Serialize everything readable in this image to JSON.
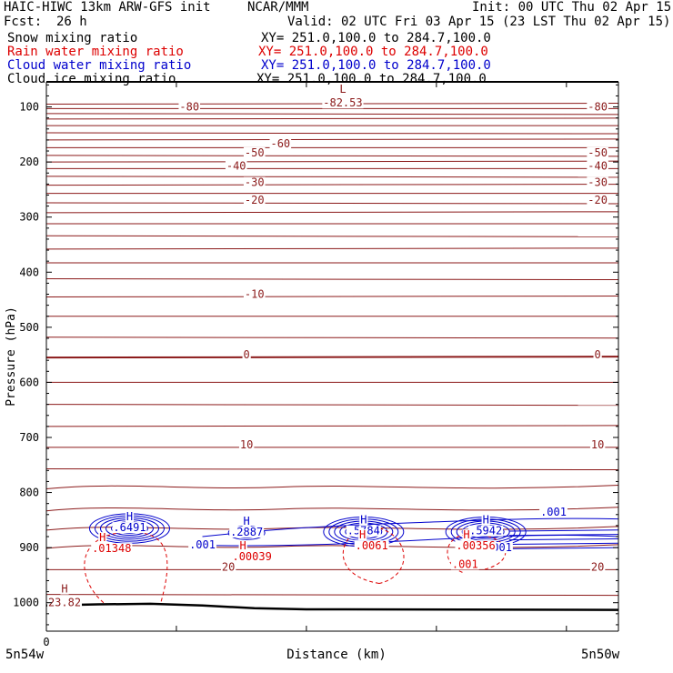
{
  "header": {
    "model": "HAIC-HIWC 13km ARW-GFS init",
    "org": "NCAR/MMM",
    "init": "Init: 00 UTC Thu 02 Apr 15",
    "fcst_label": "Fcst:",
    "fcst_value": "26 h",
    "valid": "Valid: 02 UTC Fri 03 Apr 15 (23 LST Thu 02 Apr 15)",
    "fields": [
      {
        "name": "Snow mixing ratio",
        "xy": "XY= 251.0,100.0 to 284.7,100.0",
        "color": "#000000"
      },
      {
        "name": "Rain water mixing ratio",
        "xy": "XY= 251.0,100.0 to 284.7,100.0",
        "color": "#dd0000"
      },
      {
        "name": "Cloud water mixing ratio",
        "xy": "XY= 251.0,100.0 to 284.7,100.0",
        "color": "#0000cc"
      },
      {
        "name": "Cloud ice mixing ratio",
        "xy": "XY= 251.0,100.0 to 284.7,100.0",
        "color": "#000000"
      }
    ]
  },
  "chart_data": {
    "type": "cross-section contour",
    "xlabel": "Distance (km)",
    "ylabel": "Pressure (hPa)",
    "x_ticks": [
      "0"
    ],
    "x_endpoints": [
      "5n54w",
      "5n50w"
    ],
    "yticks": [
      100,
      200,
      300,
      400,
      500,
      600,
      700,
      800,
      900,
      1000
    ],
    "ylim": [
      50,
      1050
    ],
    "grid": false,
    "colors": {
      "temperature": "#8b1a1a",
      "rain": "#dd0000",
      "cloud_water": "#0000cc",
      "terrain": "#000000"
    },
    "temperature_contours": {
      "units": "deg C",
      "interval": 10,
      "labels": [
        {
          "value": "-80",
          "x_km": 55,
          "p": 105
        },
        {
          "value": "-80",
          "x_km": 212,
          "p": 105
        },
        {
          "value": "-60",
          "x_km": 90,
          "p": 172
        },
        {
          "value": "-50",
          "x_km": 80,
          "p": 188
        },
        {
          "value": "-50",
          "x_km": 212,
          "p": 188
        },
        {
          "value": "-40",
          "x_km": 73,
          "p": 212
        },
        {
          "value": "-40",
          "x_km": 212,
          "p": 212
        },
        {
          "value": "-30",
          "x_km": 80,
          "p": 242
        },
        {
          "value": "-30",
          "x_km": 212,
          "p": 242
        },
        {
          "value": "-20",
          "x_km": 80,
          "p": 274
        },
        {
          "value": "-20",
          "x_km": 212,
          "p": 274
        },
        {
          "value": "-10",
          "x_km": 80,
          "p": 445
        },
        {
          "value": "0",
          "x_km": 77,
          "p": 555
        },
        {
          "value": "0",
          "x_km": 212,
          "p": 555
        },
        {
          "value": "10",
          "x_km": 77,
          "p": 718
        },
        {
          "value": "10",
          "x_km": 212,
          "p": 718
        },
        {
          "value": "20",
          "x_km": 70,
          "p": 940
        },
        {
          "value": "20",
          "x_km": 212,
          "p": 940
        }
      ],
      "extrema": [
        {
          "type": "L",
          "label": "-82.53",
          "x_km": 114,
          "p": 78
        },
        {
          "type": "H",
          "label": "23.82",
          "x_km": 7,
          "p": 985
        }
      ]
    },
    "cloud_water_extrema": [
      {
        "type": "H",
        "label": ".6491",
        "x_km": 32,
        "p": 862
      },
      {
        "type": "H",
        "label": ".2887",
        "x_km": 77,
        "p": 870
      },
      {
        "type": "H",
        "label": ".5784",
        "x_km": 122,
        "p": 868
      },
      {
        "type": "H",
        "label": ".5942",
        "x_km": 169,
        "p": 868
      }
    ],
    "cloud_water_labels": [
      {
        "value": ".001",
        "x_km": 60,
        "p": 900
      },
      {
        "value": ".001",
        "x_km": 195,
        "p": 840
      },
      {
        "value": ".001",
        "x_km": 174,
        "p": 905
      }
    ],
    "rain_extrema": [
      {
        "type": "H",
        "label": ".01348",
        "x_km": 23,
        "p": 900
      },
      {
        "type": "H",
        "label": ".00039",
        "x_km": 77,
        "p": 915
      },
      {
        "type": "H",
        "label": ".0061",
        "x_km": 123,
        "p": 895
      },
      {
        "type": "H",
        "label": ".00356",
        "x_km": 163,
        "p": 895
      }
    ],
    "rain_labels": [
      {
        "value": ".001",
        "x_km": 161,
        "p": 935
      }
    ]
  }
}
